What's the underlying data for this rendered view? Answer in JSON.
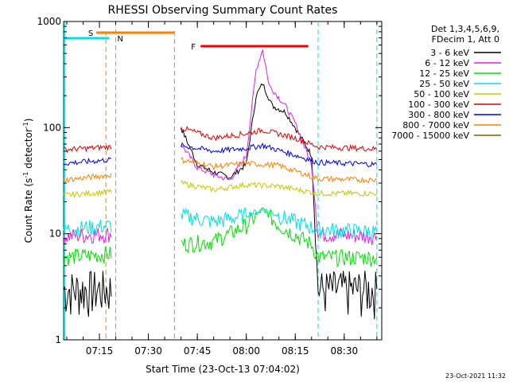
{
  "chart_data": {
    "type": "line",
    "title": "RHESSI Observing Summary Count Rates",
    "xlabel": "Start Time (23-Oct-13 07:04:02)",
    "ylabel": "Count Rate (s",
    "ylabel_sup1": "-1",
    "ylabel_mid": " detector",
    "ylabel_sup2": "-1",
    "ylabel_end": ")",
    "y_scale": "log",
    "ylim": [
      1,
      1000
    ],
    "xlim": [
      "07:04:02",
      "08:41:30"
    ],
    "x_ticks": [
      "07:15",
      "07:30",
      "07:45",
      "08:00",
      "08:15",
      "08:30"
    ],
    "y_ticks": [
      "1",
      "10",
      "100",
      "1000"
    ],
    "legend_header": [
      "Det 1,3,4,5,6,9,",
      "FDecim 1, Att 0"
    ],
    "legend_position": "right",
    "series": [
      {
        "name": "3 - 6 keV",
        "color": "#000000",
        "values": [
          [
            "07:04",
            3.0
          ],
          [
            "07:19",
            3.0
          ],
          [
            "07:39",
            null
          ],
          [
            "07:40",
            100
          ],
          [
            "07:45",
            45
          ],
          [
            "07:50",
            38
          ],
          [
            "07:55",
            34
          ],
          [
            "08:00",
            45
          ],
          [
            "08:03",
            200
          ],
          [
            "08:05",
            260
          ],
          [
            "08:08",
            160
          ],
          [
            "08:12",
            140
          ],
          [
            "08:15",
            100
          ],
          [
            "08:20",
            55
          ],
          [
            "08:22",
            3.0
          ],
          [
            "08:40",
            3.0
          ]
        ]
      },
      {
        "name": "6 - 12 keV",
        "color": "#e020e0",
        "values": [
          [
            "07:04",
            9.5
          ],
          [
            "07:19",
            10
          ],
          [
            "07:40",
            70
          ],
          [
            "07:45",
            42
          ],
          [
            "07:50",
            36
          ],
          [
            "07:55",
            32
          ],
          [
            "08:00",
            55
          ],
          [
            "08:03",
            350
          ],
          [
            "08:05",
            550
          ],
          [
            "08:07",
            250
          ],
          [
            "08:12",
            160
          ],
          [
            "08:15",
            110
          ],
          [
            "08:20",
            45
          ],
          [
            "08:22",
            10
          ],
          [
            "08:40",
            9.5
          ]
        ]
      },
      {
        "name": "12 - 25 keV",
        "color": "#00e000",
        "values": [
          [
            "07:04",
            6.0
          ],
          [
            "07:19",
            6.5
          ],
          [
            "07:40",
            8
          ],
          [
            "07:50",
            8.5
          ],
          [
            "08:00",
            12
          ],
          [
            "08:05",
            17
          ],
          [
            "08:10",
            12
          ],
          [
            "08:20",
            8
          ],
          [
            "08:22",
            6.0
          ],
          [
            "08:40",
            6.0
          ]
        ]
      },
      {
        "name": "25 - 50 keV",
        "color": "#00e0e0",
        "values": [
          [
            "07:04",
            11
          ],
          [
            "07:19",
            12
          ],
          [
            "07:40",
            15
          ],
          [
            "07:50",
            13
          ],
          [
            "08:00",
            15
          ],
          [
            "08:05",
            17
          ],
          [
            "08:15",
            13
          ],
          [
            "08:22",
            11
          ],
          [
            "08:40",
            10.5
          ]
        ]
      },
      {
        "name": "50 - 100 keV",
        "color": "#c8c800",
        "values": [
          [
            "07:04",
            23
          ],
          [
            "07:19",
            25
          ],
          [
            "07:40",
            30
          ],
          [
            "07:50",
            26
          ],
          [
            "08:00",
            29
          ],
          [
            "08:10",
            28
          ],
          [
            "08:22",
            24
          ],
          [
            "08:40",
            24
          ]
        ]
      },
      {
        "name": "100 - 300 keV",
        "color": "#e00000",
        "values": [
          [
            "07:04",
            62
          ],
          [
            "07:19",
            66
          ],
          [
            "07:40",
            100
          ],
          [
            "07:50",
            80
          ],
          [
            "08:00",
            88
          ],
          [
            "08:05",
            95
          ],
          [
            "08:15",
            80
          ],
          [
            "08:22",
            66
          ],
          [
            "08:40",
            63
          ]
        ]
      },
      {
        "name": "300 - 800 keV",
        "color": "#0000e0",
        "values": [
          [
            "07:04",
            46
          ],
          [
            "07:19",
            50
          ],
          [
            "07:40",
            68
          ],
          [
            "07:50",
            60
          ],
          [
            "08:00",
            64
          ],
          [
            "08:05",
            68
          ],
          [
            "08:15",
            55
          ],
          [
            "08:22",
            47
          ],
          [
            "08:40",
            45
          ]
        ]
      },
      {
        "name": "800 - 7000 keV",
        "color": "#ff8000",
        "values": [
          [
            "07:04",
            32
          ],
          [
            "07:19",
            36
          ],
          [
            "07:40",
            50
          ],
          [
            "07:50",
            43
          ],
          [
            "08:00",
            46
          ],
          [
            "08:10",
            44
          ],
          [
            "08:22",
            33
          ],
          [
            "08:40",
            32
          ]
        ]
      },
      {
        "name": "7000 - 15000 keV",
        "color": "#806000",
        "values": []
      }
    ],
    "annotations": {
      "flags": [
        {
          "label": "S",
          "color": "#ff8000",
          "start": "07:14",
          "end": "07:38"
        },
        {
          "label": "N",
          "color": "#00e0e0",
          "start": "07:04",
          "end": "07:18"
        },
        {
          "label": "F",
          "color": "#ff0000",
          "start": "07:46",
          "end": "08:19"
        }
      ],
      "saa_lines_orange": [
        "07:17",
        "07:38"
      ],
      "night_lines_cyan": [
        "07:20",
        "08:22",
        "08:40"
      ]
    }
  },
  "footer": {
    "timestamp": "23-Oct-2021 11:32"
  }
}
